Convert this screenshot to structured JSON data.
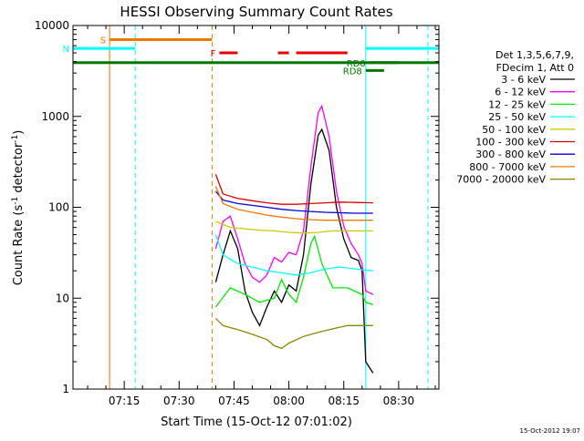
{
  "chart_data": {
    "type": "line",
    "title": "HESSI Observing Summary Count Rates",
    "xlabel": "Start Time (15-Oct-12 07:01:02)",
    "ylabel_main": "Count Rate (s",
    "ylabel_sup1": "-1",
    "ylabel_mid": " detector",
    "ylabel_sup2": "-1",
    "ylabel_end": ")",
    "y_scale": "log",
    "ylim": [
      1,
      10000
    ],
    "xlim": [
      "07:01",
      "08:41"
    ],
    "x_ticks": [
      "07:15",
      "07:30",
      "07:45",
      "08:00",
      "08:15",
      "08:30"
    ],
    "y_ticks": [
      {
        "value": 1,
        "label": "1"
      },
      {
        "value": 10,
        "label": "10"
      },
      {
        "value": 100,
        "label": "100"
      },
      {
        "value": 1000,
        "label": "1000"
      },
      {
        "value": 10000,
        "label": "10000"
      }
    ],
    "legend_placement": "right",
    "legend_header": [
      "Det 1,3,5,6,7,9,",
      "FDecim 1, Att 0"
    ],
    "series": [
      {
        "name": "3 - 6 keV",
        "color": "#000000",
        "points": [
          [
            "07:40",
            15
          ],
          [
            "07:42",
            30
          ],
          [
            "07:44",
            55
          ],
          [
            "07:46",
            35
          ],
          [
            "07:48",
            12
          ],
          [
            "07:50",
            7
          ],
          [
            "07:52",
            5
          ],
          [
            "07:54",
            8
          ],
          [
            "07:56",
            12
          ],
          [
            "07:58",
            9
          ],
          [
            "08:00",
            14
          ],
          [
            "08:02",
            12
          ],
          [
            "08:04",
            30
          ],
          [
            "08:06",
            180
          ],
          [
            "08:08",
            620
          ],
          [
            "08:09",
            720
          ],
          [
            "08:11",
            420
          ],
          [
            "08:13",
            100
          ],
          [
            "08:15",
            45
          ],
          [
            "08:17",
            28
          ],
          [
            "08:19",
            26
          ],
          [
            "08:20",
            20
          ],
          [
            "08:21",
            2
          ],
          [
            "08:23",
            1.5
          ]
        ]
      },
      {
        "name": "6 - 12 keV",
        "color": "#ff00ff",
        "points": [
          [
            "07:40",
            35
          ],
          [
            "07:42",
            70
          ],
          [
            "07:44",
            80
          ],
          [
            "07:46",
            45
          ],
          [
            "07:48",
            24
          ],
          [
            "07:50",
            17
          ],
          [
            "07:52",
            15
          ],
          [
            "07:54",
            18
          ],
          [
            "07:56",
            28
          ],
          [
            "07:58",
            25
          ],
          [
            "08:00",
            32
          ],
          [
            "08:02",
            30
          ],
          [
            "08:04",
            55
          ],
          [
            "08:06",
            280
          ],
          [
            "08:08",
            1100
          ],
          [
            "08:09",
            1300
          ],
          [
            "08:11",
            600
          ],
          [
            "08:13",
            150
          ],
          [
            "08:15",
            62
          ],
          [
            "08:17",
            40
          ],
          [
            "08:19",
            30
          ],
          [
            "08:20",
            24
          ],
          [
            "08:21",
            12
          ],
          [
            "08:23",
            11
          ]
        ]
      },
      {
        "name": "12 - 25 keV",
        "color": "#00ee00",
        "points": [
          [
            "07:40",
            8
          ],
          [
            "07:44",
            13
          ],
          [
            "07:48",
            11
          ],
          [
            "07:52",
            9
          ],
          [
            "07:56",
            10
          ],
          [
            "07:58",
            16
          ],
          [
            "08:00",
            11
          ],
          [
            "08:02",
            9
          ],
          [
            "08:04",
            17
          ],
          [
            "08:06",
            40
          ],
          [
            "08:07",
            48
          ],
          [
            "08:09",
            24
          ],
          [
            "08:12",
            13
          ],
          [
            "08:16",
            13
          ],
          [
            "08:20",
            11
          ],
          [
            "08:21",
            9
          ],
          [
            "08:23",
            8.5
          ]
        ]
      },
      {
        "name": "25 - 50 keV",
        "color": "#00ffff",
        "points": [
          [
            "07:40",
            50
          ],
          [
            "07:42",
            30
          ],
          [
            "07:46",
            24
          ],
          [
            "07:50",
            22
          ],
          [
            "07:54",
            20
          ],
          [
            "07:58",
            19
          ],
          [
            "08:02",
            18
          ],
          [
            "08:06",
            19
          ],
          [
            "08:10",
            21
          ],
          [
            "08:14",
            22
          ],
          [
            "08:18",
            21
          ],
          [
            "08:23",
            20
          ]
        ]
      },
      {
        "name": "50 - 100 keV",
        "color": "#cccc00",
        "points": [
          [
            "07:40",
            70
          ],
          [
            "07:44",
            60
          ],
          [
            "07:48",
            58
          ],
          [
            "07:52",
            56
          ],
          [
            "07:56",
            55
          ],
          [
            "08:00",
            53
          ],
          [
            "08:04",
            52
          ],
          [
            "08:08",
            53
          ],
          [
            "08:12",
            55
          ],
          [
            "08:16",
            55
          ],
          [
            "08:20",
            55
          ],
          [
            "08:23",
            55
          ]
        ]
      },
      {
        "name": "100 - 300 keV",
        "color": "#dd0000",
        "points": [
          [
            "07:40",
            230
          ],
          [
            "07:42",
            140
          ],
          [
            "07:46",
            125
          ],
          [
            "07:50",
            118
          ],
          [
            "07:54",
            112
          ],
          [
            "07:58",
            108
          ],
          [
            "08:02",
            108
          ],
          [
            "08:06",
            110
          ],
          [
            "08:10",
            112
          ],
          [
            "08:14",
            114
          ],
          [
            "08:18",
            113
          ],
          [
            "08:23",
            112
          ]
        ]
      },
      {
        "name": "300 - 800 keV",
        "color": "#0000dd",
        "points": [
          [
            "07:40",
            150
          ],
          [
            "07:42",
            120
          ],
          [
            "07:46",
            110
          ],
          [
            "07:50",
            105
          ],
          [
            "07:54",
            100
          ],
          [
            "07:58",
            95
          ],
          [
            "08:02",
            92
          ],
          [
            "08:06",
            90
          ],
          [
            "08:10",
            88
          ],
          [
            "08:14",
            87
          ],
          [
            "08:18",
            86
          ],
          [
            "08:23",
            86
          ]
        ]
      },
      {
        "name": "800 - 7000 keV",
        "color": "#ee7700",
        "points": [
          [
            "07:40",
            170
          ],
          [
            "07:42",
            110
          ],
          [
            "07:46",
            95
          ],
          [
            "07:50",
            88
          ],
          [
            "07:54",
            82
          ],
          [
            "07:58",
            78
          ],
          [
            "08:02",
            75
          ],
          [
            "08:06",
            73
          ],
          [
            "08:10",
            72
          ],
          [
            "08:14",
            72
          ],
          [
            "08:18",
            72
          ],
          [
            "08:23",
            72
          ]
        ]
      },
      {
        "name": "7000 - 20000 keV",
        "color": "#888800",
        "points": [
          [
            "07:40",
            6
          ],
          [
            "07:42",
            5
          ],
          [
            "07:46",
            4.5
          ],
          [
            "07:50",
            4
          ],
          [
            "07:54",
            3.5
          ],
          [
            "07:56",
            3
          ],
          [
            "07:58",
            2.8
          ],
          [
            "08:00",
            3.2
          ],
          [
            "08:04",
            3.8
          ],
          [
            "08:08",
            4.2
          ],
          [
            "08:12",
            4.6
          ],
          [
            "08:16",
            5
          ],
          [
            "08:20",
            5
          ],
          [
            "08:23",
            5
          ]
        ]
      }
    ],
    "overlay_bars": [
      {
        "label": "S",
        "color": "#ee7700",
        "start": "07:11",
        "end": "07:39",
        "level": 7000
      },
      {
        "label": "N",
        "color": "#00ffff",
        "start": "07:01",
        "end": "07:18",
        "level": 5600
      },
      {
        "label": "F",
        "color": "#ee0000",
        "start": "07:41",
        "end": "07:46",
        "level": 5000
      },
      {
        "label": "",
        "color": "#ee0000",
        "start": "07:57",
        "end": "08:00",
        "level": 5000
      },
      {
        "label": "",
        "color": "#ee0000",
        "start": "08:02",
        "end": "08:16",
        "level": 5000
      },
      {
        "label": "",
        "color": "#00ffff",
        "start": "08:21",
        "end": "08:41",
        "level": 5600
      },
      {
        "label": "RD0",
        "color": "#007700",
        "start": "08:22",
        "end": "08:30",
        "level": 3900
      },
      {
        "label": "RD8",
        "color": "#007700",
        "start": "08:21",
        "end": "08:26",
        "level": 3200
      },
      {
        "label": "",
        "color": "#007700",
        "start": "07:01",
        "end": "08:41",
        "level": 3900
      }
    ],
    "vertical_markers": [
      {
        "time": "07:01",
        "color": "#00ffff",
        "style": "solid"
      },
      {
        "time": "07:11",
        "color": "#ee7700",
        "style": "solid"
      },
      {
        "time": "07:18",
        "color": "#00ffff",
        "style": "dashed"
      },
      {
        "time": "07:39",
        "color": "#ee7700",
        "style": "dashed"
      },
      {
        "time": "08:21",
        "color": "#00ffff",
        "style": "solid"
      },
      {
        "time": "08:38",
        "color": "#00ffff",
        "style": "dashed"
      }
    ],
    "footer_stamp": "15-Oct-2012 19:07"
  }
}
